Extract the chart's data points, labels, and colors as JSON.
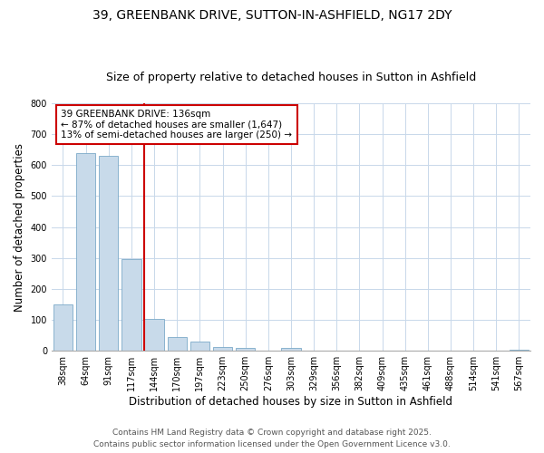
{
  "title": "39, GREENBANK DRIVE, SUTTON-IN-ASHFIELD, NG17 2DY",
  "subtitle": "Size of property relative to detached houses in Sutton in Ashfield",
  "xlabel": "Distribution of detached houses by size in Sutton in Ashfield",
  "ylabel": "Number of detached properties",
  "bin_labels": [
    "38sqm",
    "64sqm",
    "91sqm",
    "117sqm",
    "144sqm",
    "170sqm",
    "197sqm",
    "223sqm",
    "250sqm",
    "276sqm",
    "303sqm",
    "329sqm",
    "356sqm",
    "382sqm",
    "409sqm",
    "435sqm",
    "461sqm",
    "488sqm",
    "514sqm",
    "541sqm",
    "567sqm"
  ],
  "bar_heights": [
    150,
    640,
    630,
    295,
    102,
    45,
    30,
    12,
    10,
    0,
    8,
    0,
    0,
    0,
    0,
    0,
    0,
    0,
    0,
    0,
    5
  ],
  "bar_color": "#c8daea",
  "bar_edge_color": "#7baac8",
  "vline_color": "#cc0000",
  "annotation_text": "39 GREENBANK DRIVE: 136sqm\n← 87% of detached houses are smaller (1,647)\n13% of semi-detached houses are larger (250) →",
  "annotation_box_color": "#ffffff",
  "annotation_box_edge": "#cc0000",
  "ylim": [
    0,
    800
  ],
  "yticks": [
    0,
    100,
    200,
    300,
    400,
    500,
    600,
    700,
    800
  ],
  "grid_color": "#c8d8ea",
  "bg_color": "#ffffff",
  "fig_bg_color": "#ffffff",
  "footer1": "Contains HM Land Registry data © Crown copyright and database right 2025.",
  "footer2": "Contains public sector information licensed under the Open Government Licence v3.0.",
  "title_fontsize": 10,
  "subtitle_fontsize": 9,
  "axis_label_fontsize": 8.5,
  "tick_fontsize": 7,
  "annot_fontsize": 7.5,
  "footer_fontsize": 6.5
}
